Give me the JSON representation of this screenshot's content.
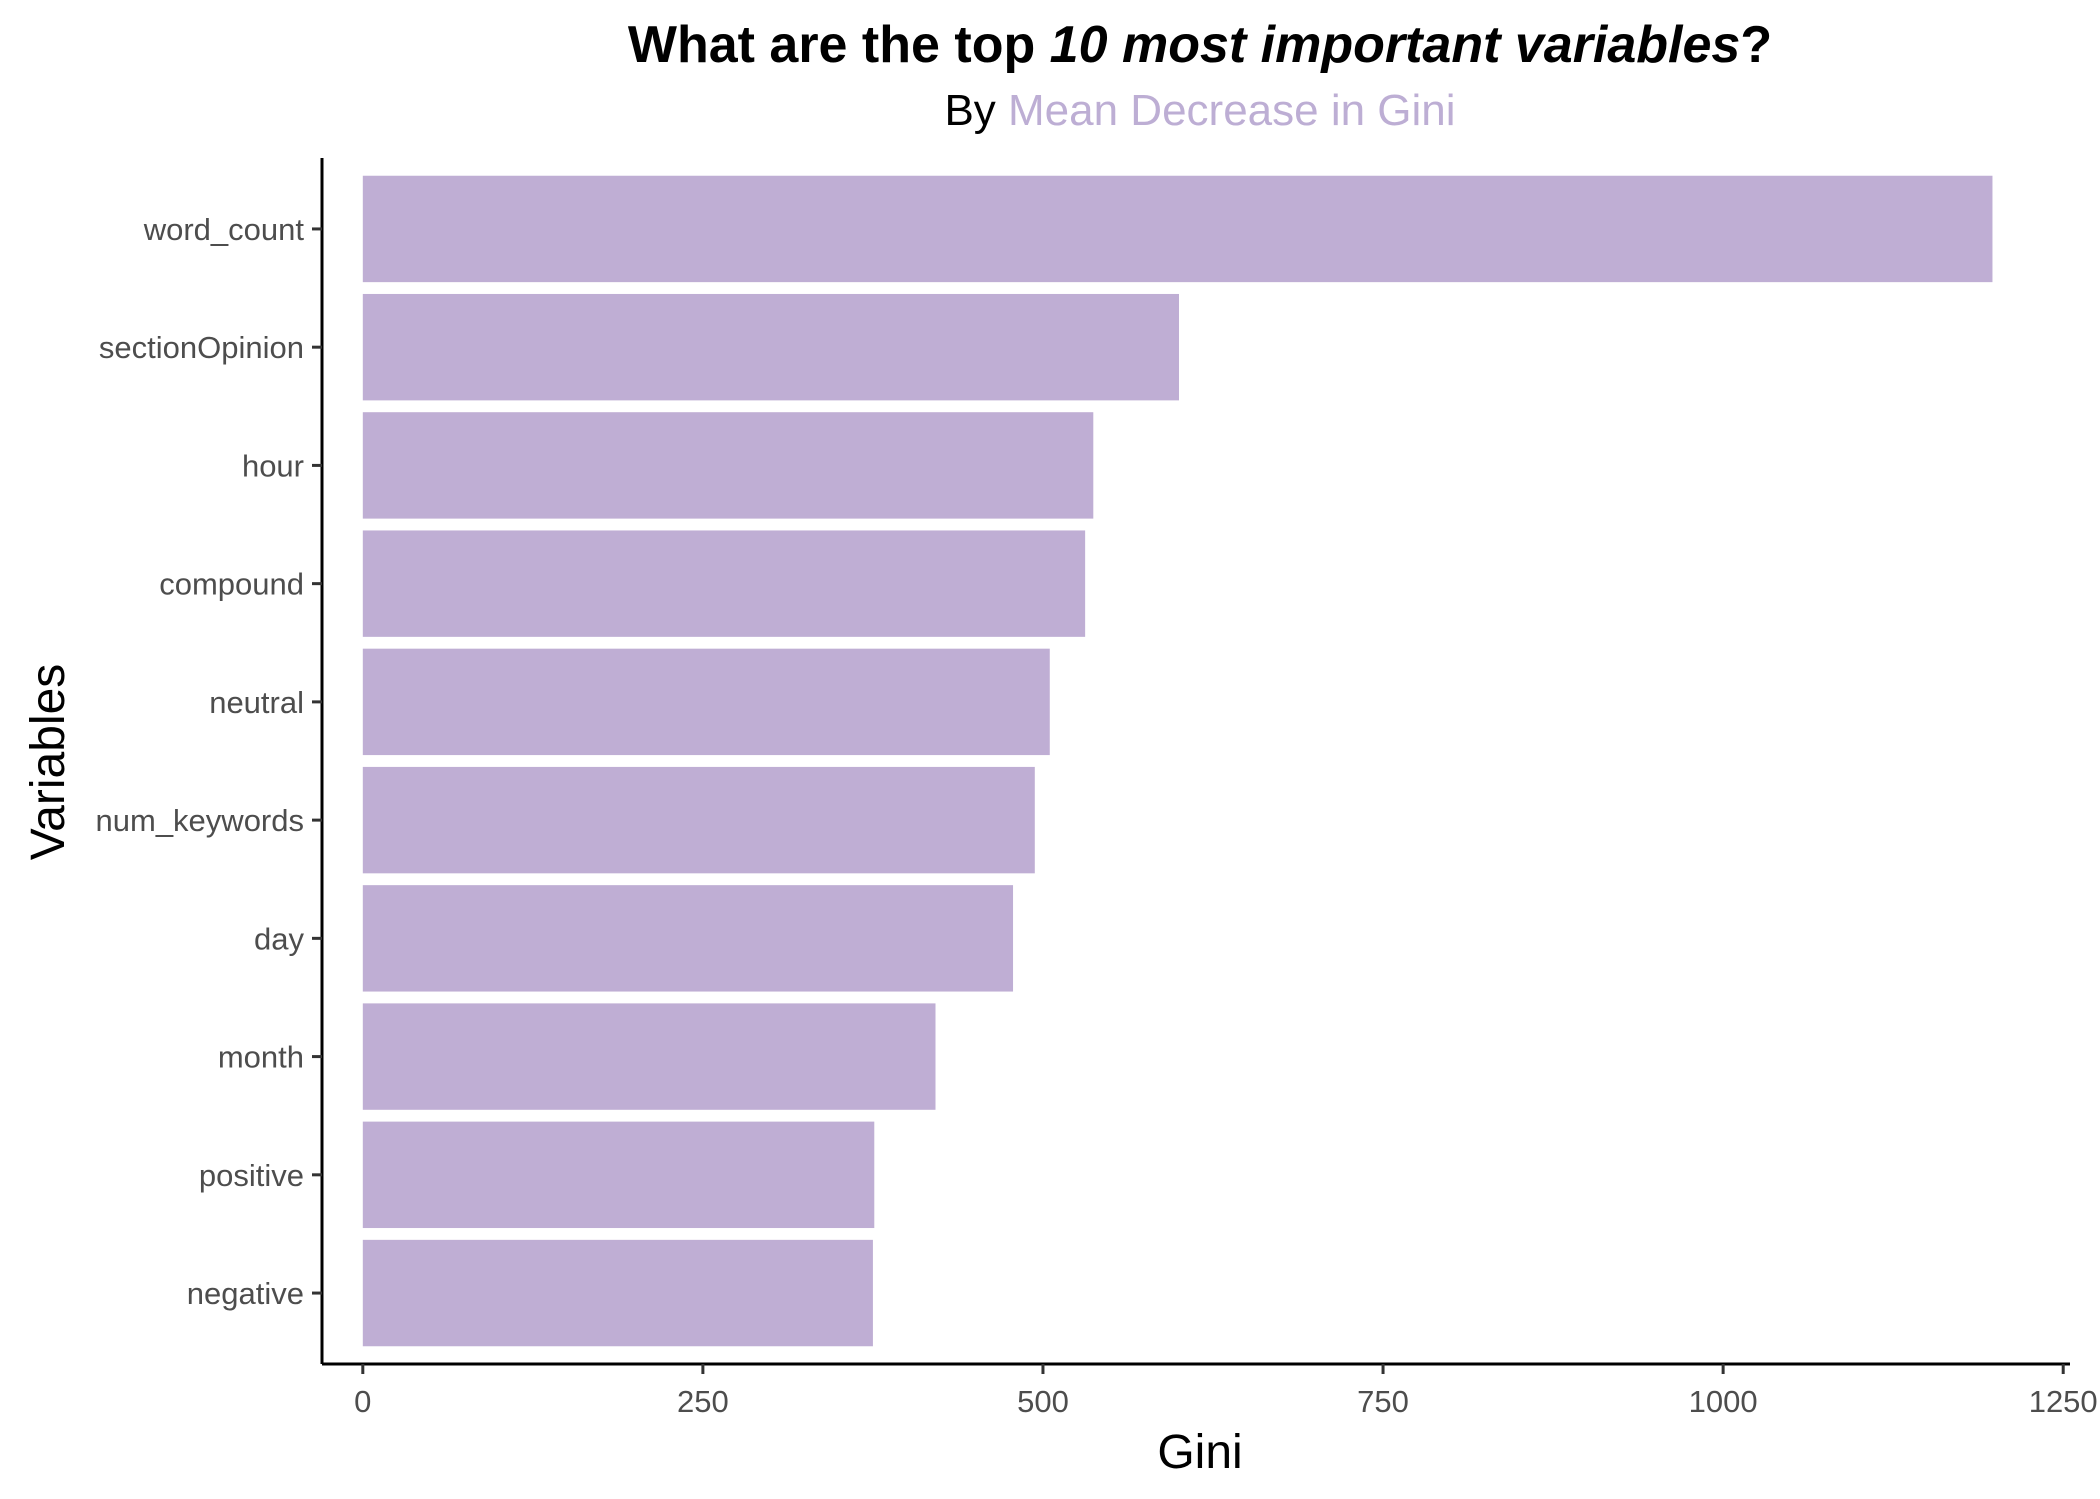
{
  "chart_data": {
    "type": "bar",
    "orientation": "horizontal",
    "title_parts": [
      {
        "text": "What are the top ",
        "italic": false
      },
      {
        "text": "10 most important variables",
        "italic": true
      },
      {
        "text": "?",
        "italic": false
      }
    ],
    "subtitle_parts": [
      {
        "text": "By ",
        "color": "#000000"
      },
      {
        "text": "Mean Decrease in Gini",
        "color": "#bdaed4"
      }
    ],
    "xlabel": "Gini",
    "ylabel": "Variables",
    "categories": [
      "word_count",
      "sectionOpinion",
      "hour",
      "compound",
      "neutral",
      "num_keywords",
      "day",
      "month",
      "positive",
      "negative"
    ],
    "values": [
      1198,
      600,
      537,
      531,
      505,
      494,
      478,
      421,
      376,
      375
    ],
    "xlim": [
      -30,
      1255
    ],
    "xticks": [
      0,
      250,
      500,
      750,
      1000,
      1250
    ],
    "xtick_labels": [
      "0",
      "250",
      "500",
      "750",
      "1000",
      "1250"
    ],
    "bar_color": "#bfaed4",
    "grid": false,
    "legend": "none"
  }
}
